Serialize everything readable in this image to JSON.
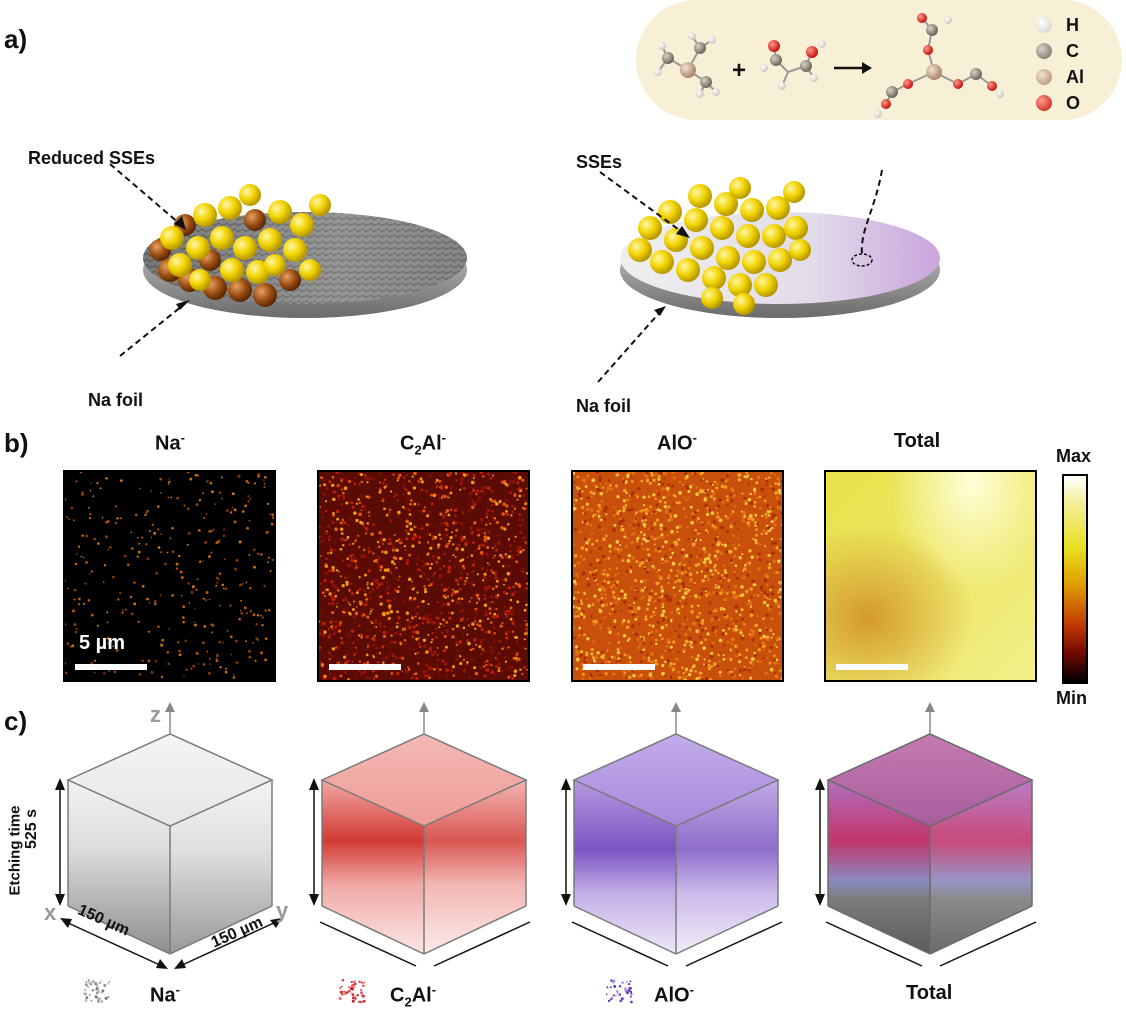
{
  "panel_a": {
    "letter": "a)",
    "left_disc": {
      "top_label": "Reduced SSEs",
      "bottom_label": "Na foil"
    },
    "right_disc": {
      "top_label": "SSEs",
      "bottom_label": "Na foil"
    },
    "reaction": {
      "plus": "+",
      "arrow": "→"
    },
    "legend": [
      "H",
      "C",
      "Al",
      "O"
    ],
    "legend_colors": [
      "#f2f0ea",
      "#8a8478",
      "#c9aa92",
      "#e3281f"
    ]
  },
  "panel_b": {
    "letter": "b)",
    "maps": [
      {
        "title_main": "Na",
        "title_sub": "",
        "title_sup": "-"
      },
      {
        "title_main": "C",
        "title_sub": "2",
        "title_main2": "Al",
        "title_sup": "-"
      },
      {
        "title_main": "AlO",
        "title_sub": "",
        "title_sup": "-"
      },
      {
        "title_main": "Total",
        "title_sub": "",
        "title_sup": ""
      }
    ],
    "scale_label": "5 µm",
    "colorbar": {
      "max": "Max",
      "min": "Min"
    }
  },
  "panel_c": {
    "letter": "c)",
    "axes": {
      "z": "z",
      "x": "x",
      "y": "y"
    },
    "etching_label": "Etching time",
    "time_label": "525 s",
    "size_x": "150 µm",
    "size_y": "150 µm",
    "legend": [
      {
        "main": "Na",
        "sub": "",
        "main2": "",
        "sup": "-",
        "color": "#9a9a9a"
      },
      {
        "main": "C",
        "sub": "2",
        "main2": "Al",
        "sup": "-",
        "color": "#e0474a"
      },
      {
        "main": "AlO",
        "sub": "",
        "main2": "",
        "sup": "-",
        "color": "#7a4fc2"
      },
      {
        "main": "Total",
        "sub": "",
        "main2": "",
        "sup": "",
        "color": ""
      }
    ]
  }
}
